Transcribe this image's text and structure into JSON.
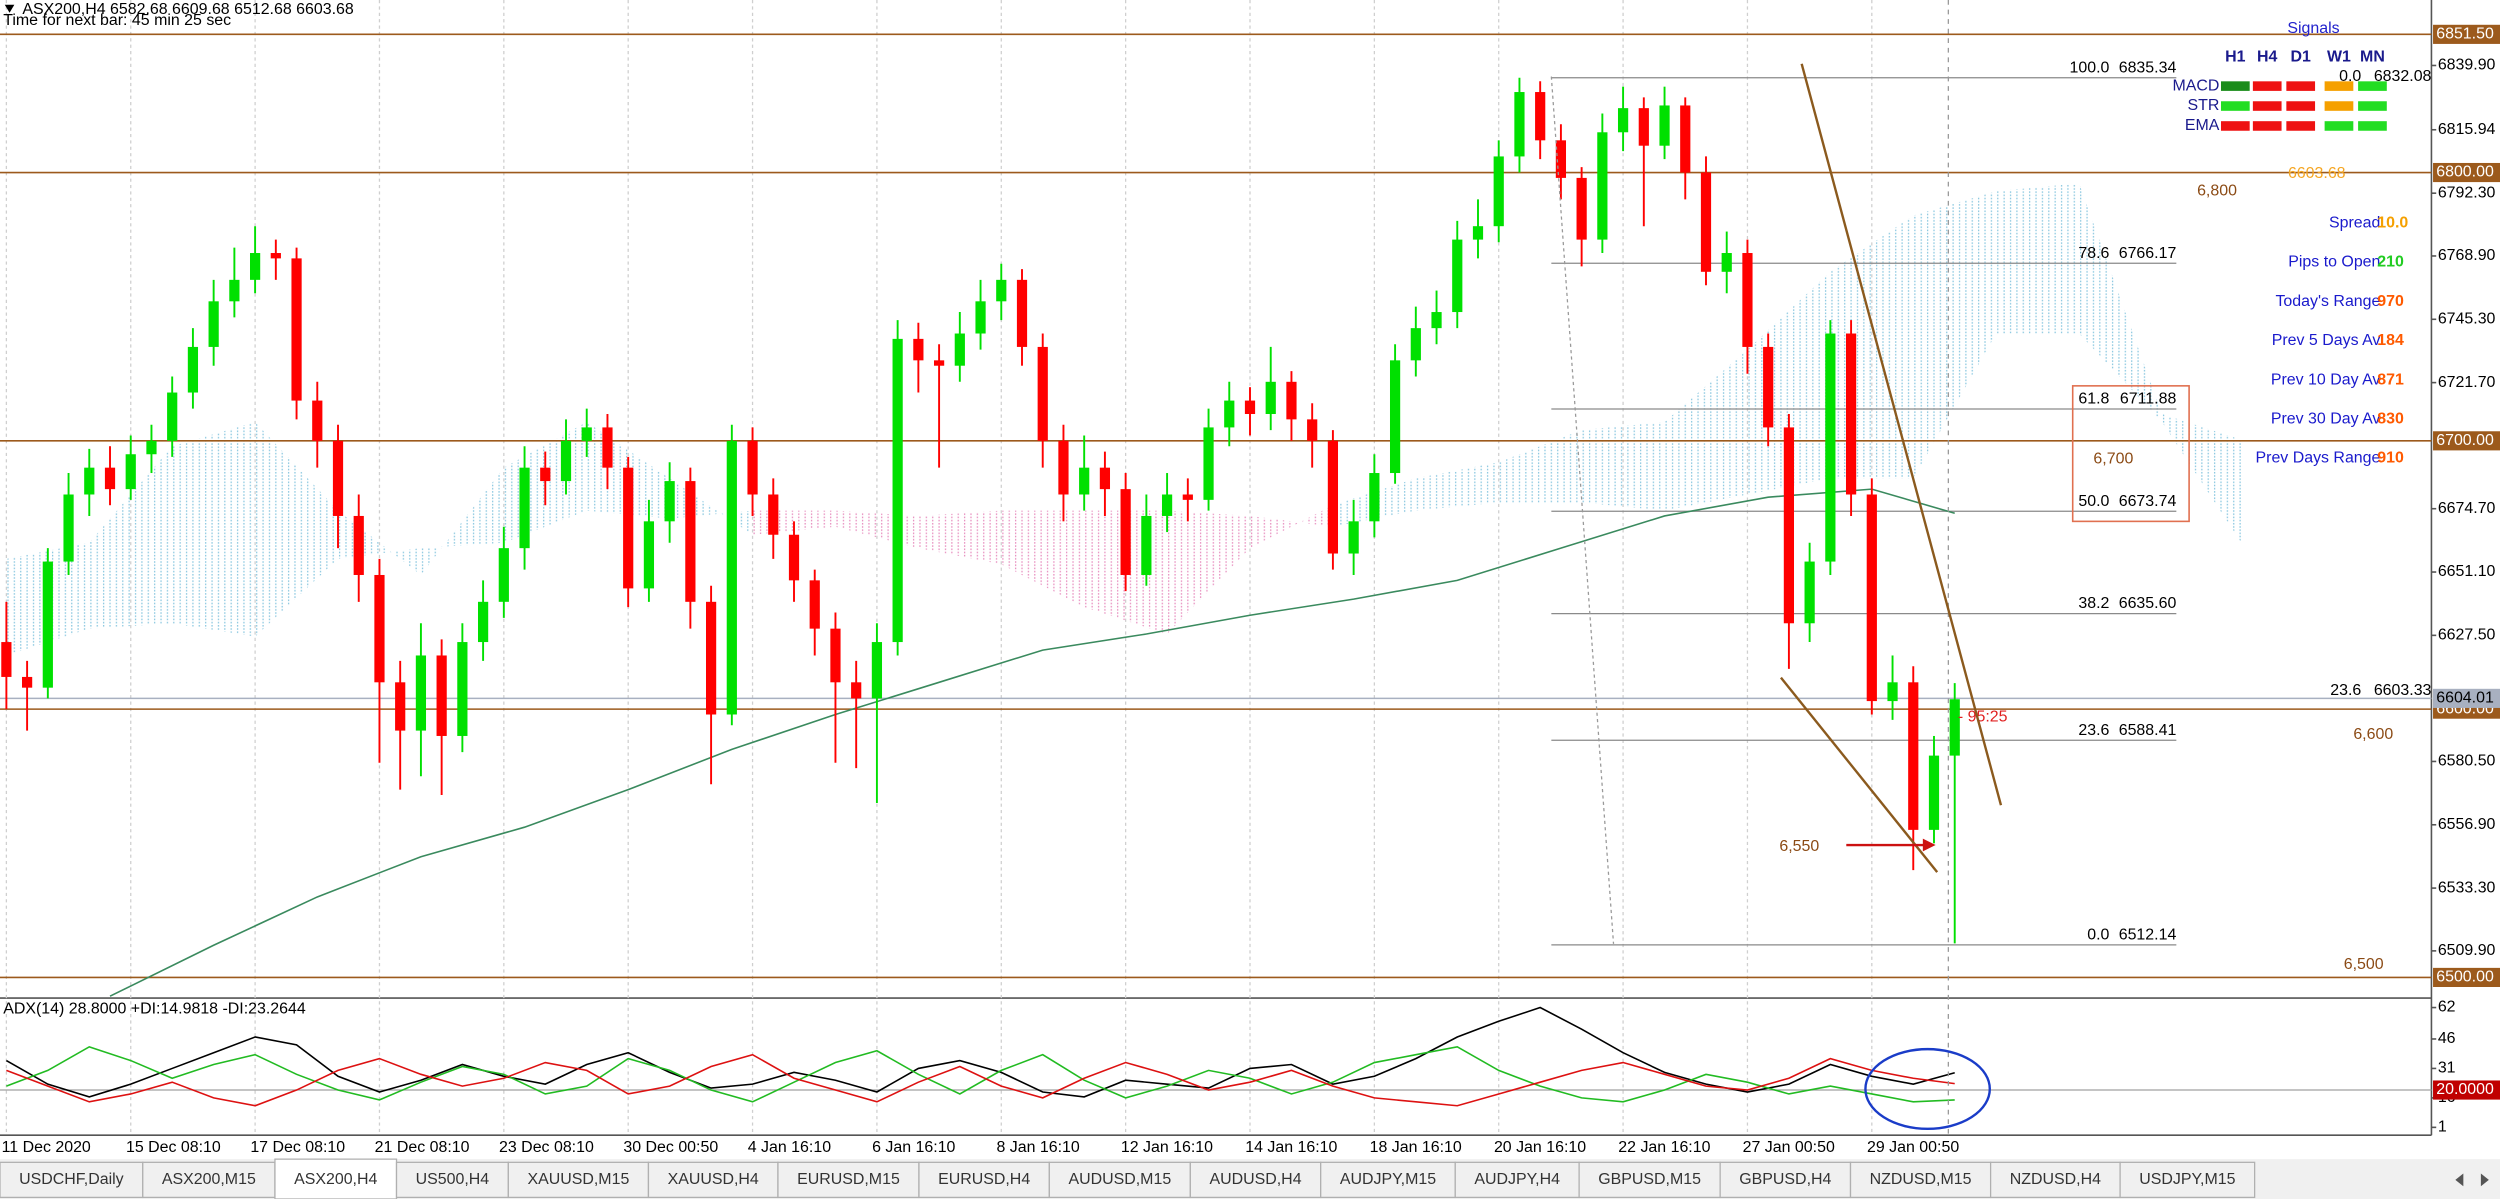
{
  "header": {
    "symbol_line": "ASX200,H4  6582.68 6609.68 6512.68 6603.68",
    "timer": "Time for next bar: 45 min 25 sec"
  },
  "chart_data": {
    "type": "candlestick",
    "categories": [
      "11 Dec 2020",
      null,
      null,
      null,
      null,
      null,
      "15 Dec 08:10",
      null,
      null,
      null,
      null,
      null,
      "17 Dec 08:10",
      null,
      null,
      null,
      null,
      null,
      "21 Dec 08:10",
      null,
      null,
      null,
      null,
      null,
      "23 Dec 08:10",
      null,
      null,
      null,
      null,
      null,
      "30 Dec 00:50",
      null,
      null,
      null,
      null,
      null,
      "4 Jan 16:10",
      null,
      null,
      null,
      null,
      null,
      "6 Jan 16:10",
      null,
      null,
      null,
      null,
      null,
      "8 Jan 16:10",
      null,
      null,
      null,
      null,
      null,
      "12 Jan 16:10",
      null,
      null,
      null,
      null,
      null,
      "14 Jan 16:10",
      null,
      null,
      null,
      null,
      null,
      "18 Jan 16:10",
      null,
      null,
      null,
      null,
      null,
      "20 Jan 16:10",
      null,
      null,
      null,
      null,
      null,
      "22 Jan 16:10",
      null,
      null,
      null,
      null,
      null,
      "27 Jan 00:50",
      null,
      null,
      null,
      null,
      null,
      "29 Jan 00:50",
      null,
      null,
      null,
      null
    ],
    "open": [
      6625,
      6612,
      6608,
      6655,
      6680,
      6690,
      6682,
      6695,
      6700,
      6718,
      6735,
      6752,
      6760,
      6770,
      6768,
      6715,
      6700,
      6672,
      6650,
      6610,
      6592,
      6620,
      6590,
      6625,
      6640,
      6660,
      6690,
      6685,
      6700,
      6705,
      6690,
      6645,
      6670,
      6685,
      6640,
      6598,
      6700,
      6680,
      6665,
      6648,
      6630,
      6610,
      6604,
      6625,
      6738,
      6730,
      6728,
      6740,
      6752,
      6760,
      6735,
      6700,
      6680,
      6690,
      6682,
      6650,
      6672,
      6680,
      6678,
      6705,
      6715,
      6710,
      6722,
      6708,
      6700,
      6658,
      6670,
      6688,
      6730,
      6742,
      6748,
      6775,
      6780,
      6806,
      6830,
      6812,
      6798,
      6775,
      6815,
      6824,
      6810,
      6825,
      6800,
      6763,
      6770,
      6735,
      6705,
      6632,
      6655,
      6740,
      6680,
      6603,
      6610,
      6555,
      6582.68
    ],
    "high": [
      6640,
      6618,
      6660,
      6688,
      6697,
      6698,
      6702,
      6706,
      6724,
      6742,
      6760,
      6772,
      6780,
      6775,
      6772,
      6722,
      6706,
      6680,
      6656,
      6618,
      6632,
      6626,
      6632,
      6648,
      6668,
      6698,
      6696,
      6708,
      6712,
      6710,
      6694,
      6678,
      6692,
      6690,
      6646,
      6706,
      6705,
      6686,
      6670,
      6652,
      6636,
      6618,
      6632,
      6745,
      6744,
      6736,
      6748,
      6760,
      6766,
      6764,
      6740,
      6706,
      6702,
      6696,
      6688,
      6680,
      6688,
      6686,
      6712,
      6722,
      6720,
      6735,
      6726,
      6714,
      6704,
      6678,
      6695,
      6736,
      6750,
      6756,
      6782,
      6790,
      6812,
      6835.34,
      6834,
      6818,
      6802,
      6822,
      6832,
      6828,
      6832,
      6828,
      6806,
      6778,
      6775,
      6740,
      6710,
      6662,
      6745,
      6745,
      6686,
      6620,
      6616,
      6590,
      6609.68
    ],
    "low": [
      6600,
      6592,
      6604,
      6650,
      6672,
      6676,
      6678,
      6688,
      6694,
      6712,
      6728,
      6746,
      6755,
      6760,
      6708,
      6690,
      6660,
      6640,
      6580,
      6570,
      6575,
      6568,
      6584,
      6618,
      6634,
      6652,
      6676,
      6680,
      6694,
      6682,
      6638,
      6640,
      6662,
      6630,
      6572,
      6594,
      6672,
      6656,
      6640,
      6620,
      6580,
      6578,
      6565,
      6620,
      6718,
      6690,
      6722,
      6734,
      6745,
      6728,
      6690,
      6670,
      6674,
      6672,
      6644,
      6646,
      6666,
      6670,
      6674,
      6698,
      6702,
      6704,
      6700,
      6690,
      6652,
      6650,
      6664,
      6684,
      6724,
      6736,
      6742,
      6768,
      6774,
      6800,
      6805,
      6790,
      6765,
      6770,
      6808,
      6780,
      6805,
      6790,
      6758,
      6755,
      6725,
      6698,
      6615,
      6625,
      6650,
      6672,
      6598,
      6596,
      6540,
      6550,
      6512.68
    ],
    "close": [
      6612,
      6608,
      6655,
      6680,
      6690,
      6682,
      6695,
      6700,
      6718,
      6735,
      6752,
      6760,
      6770,
      6768,
      6715,
      6700,
      6672,
      6650,
      6610,
      6592,
      6620,
      6590,
      6625,
      6640,
      6660,
      6690,
      6685,
      6700,
      6705,
      6690,
      6645,
      6670,
      6685,
      6640,
      6598,
      6700,
      6680,
      6665,
      6648,
      6630,
      6610,
      6604,
      6625,
      6738,
      6730,
      6728,
      6740,
      6752,
      6760,
      6735,
      6700,
      6680,
      6690,
      6682,
      6650,
      6672,
      6680,
      6678,
      6705,
      6715,
      6710,
      6722,
      6708,
      6700,
      6658,
      6670,
      6688,
      6730,
      6742,
      6748,
      6775,
      6780,
      6806,
      6830,
      6812,
      6798,
      6775,
      6815,
      6824,
      6810,
      6825,
      6800,
      6763,
      6770,
      6735,
      6705,
      6632,
      6655,
      6740,
      6680,
      6603,
      6610,
      6555,
      6582.68,
      6603.68
    ],
    "up_color": "#00e000",
    "down_color": "#ff0000",
    "ylim": [
      6492.3,
      6864.3
    ],
    "yticks": [
      {
        "value": 6839.9,
        "label": "6839.90"
      },
      6815.94,
      {
        "value": 6792.3,
        "label": "6792.30"
      },
      {
        "value": 6768.9,
        "label": "6768.90"
      },
      {
        "value": 6745.3,
        "label": "6745.30"
      },
      {
        "value": 6721.7,
        "label": "6721.70"
      },
      {
        "value": 6674.7,
        "label": "6674.70"
      },
      {
        "value": 6651.1,
        "label": "6651.10"
      },
      {
        "value": 6627.5,
        "label": "6627.50"
      },
      {
        "value": 6580.5,
        "label": "6580.50"
      },
      {
        "value": 6556.9,
        "label": "6556.90"
      },
      {
        "value": 6533.3,
        "label": "6533.30"
      },
      {
        "value": 6509.9,
        "label": "6509.90"
      }
    ],
    "levels": [
      {
        "value": 6851.5,
        "label": "6851.50"
      },
      {
        "value": 6800,
        "label": "6800.00"
      },
      {
        "value": 6700,
        "label": "6700.00"
      },
      {
        "value": 6600,
        "label": "6600.00"
      },
      {
        "value": 6500,
        "label": "6500.00"
      }
    ],
    "level_color": "#9c5a1c",
    "bid": {
      "value": 6604.01,
      "label": "6604.01"
    },
    "bid_color": "#a8b0c0",
    "fib": [
      {
        "level": "100.0",
        "price": 6835.34
      },
      {
        "level": "78.6",
        "price": 6766.17
      },
      {
        "level": "61.8",
        "price": 6711.88
      },
      {
        "level": "50.0",
        "price": 6673.74
      },
      {
        "level": "38.2",
        "price": 6635.6
      },
      {
        "level": "23.6",
        "price": 6588.41
      },
      {
        "level": "0.0",
        "price": 6512.14
      }
    ],
    "fib_price_labels": [
      "6835.34",
      "6766.17",
      "6711.88",
      "6673.74",
      "6635.60",
      "6588.41",
      "6512.14"
    ],
    "fib2": [
      {
        "level": "0.0",
        "price": 6832.08
      },
      {
        "level": "23.6",
        "price": 6603.33
      }
    ],
    "ma": {
      "x": [
        5,
        10,
        15,
        20,
        25,
        30,
        35,
        40,
        45,
        50,
        55,
        60,
        65,
        70,
        75,
        80,
        85,
        90,
        94
      ],
      "values": [
        6493,
        6512,
        6530,
        6545,
        6556,
        6570,
        6585,
        6598,
        6610,
        6622,
        6628,
        6635,
        6641,
        6648,
        6660,
        6672,
        6679,
        6682,
        6673
      ],
      "color": "#3a8a5e"
    },
    "cloud": {
      "x": [
        0,
        4,
        8,
        12,
        16,
        20,
        24,
        28,
        32,
        36,
        40,
        44,
        48,
        52,
        56,
        60,
        64,
        68,
        72,
        76,
        80,
        84,
        88,
        92,
        96,
        100,
        104,
        108
      ],
      "span_a": [
        6656,
        6662,
        6698,
        6707,
        6674,
        6650,
        6690,
        6707,
        6686,
        6665,
        6668,
        6660,
        6654,
        6638,
        6628,
        6660,
        6676,
        6686,
        6692,
        6704,
        6707,
        6734,
        6763,
        6784,
        6793,
        6796,
        6710,
        6700
      ],
      "span_b": [
        6620,
        6630,
        6632,
        6627,
        6656,
        6660,
        6662,
        6674,
        6671,
        6674,
        6674,
        6672,
        6674,
        6674,
        6674,
        6672,
        6668,
        6674,
        6677,
        6677,
        6674,
        6680,
        6686,
        6686,
        6740,
        6740,
        6707,
        6660
      ]
    },
    "annotations": [
      {
        "text": "6,800",
        "color": "#8b4a14"
      },
      {
        "text": "6,700",
        "color": "#8b4a14"
      },
      {
        "text": "6,600",
        "color": "#8b4a14"
      },
      {
        "text": "6,550",
        "color": "#8b4a14"
      },
      {
        "text": "6,500",
        "color": "#8b4a14"
      },
      {
        "text": "6603.68",
        "color": "#f5a623"
      },
      {
        "text": "- 95:25",
        "color": "#e02020"
      }
    ],
    "indicator": {
      "title": "ADX(14) 28.8000 +DI:14.9818 -DI:23.2644",
      "ylim": [
        -3,
        66
      ],
      "yticks": [
        62,
        46,
        31,
        16,
        1
      ],
      "level": {
        "value": 20,
        "label": "20.0000"
      },
      "x": [
        0,
        2,
        4,
        6,
        8,
        10,
        12,
        14,
        16,
        18,
        20,
        22,
        24,
        26,
        28,
        30,
        32,
        34,
        36,
        38,
        40,
        42,
        44,
        46,
        48,
        50,
        52,
        54,
        56,
        58,
        60,
        62,
        64,
        66,
        68,
        70,
        72,
        74,
        76,
        78,
        80,
        82,
        84,
        86,
        88,
        90,
        92,
        94
      ],
      "series": [
        {
          "color": "#000000",
          "values": [
            35,
            23,
            16.5,
            23,
            31,
            39,
            47,
            43,
            27,
            19,
            25,
            33,
            27,
            23,
            33,
            39,
            29,
            21,
            23,
            29,
            25,
            19,
            31,
            35,
            29,
            19,
            16.5,
            25,
            23,
            21,
            31,
            33,
            23,
            27,
            36,
            47,
            55,
            62,
            51,
            39,
            29,
            23,
            19,
            23,
            33,
            27,
            23,
            28.8
          ]
        },
        {
          "color": "#22bb22",
          "values": [
            22,
            30,
            42,
            35,
            26,
            33,
            38,
            28,
            20,
            15,
            24,
            32,
            28,
            18,
            22,
            36,
            30,
            20,
            14,
            24,
            34,
            40,
            28,
            18,
            30,
            38,
            25,
            16,
            22,
            30,
            26,
            18,
            24,
            34,
            38,
            42,
            30,
            22,
            16,
            14,
            20,
            28,
            24,
            18,
            22,
            18,
            14,
            14.98
          ]
        },
        {
          "color": "#dd1111",
          "values": [
            30,
            22,
            14,
            18,
            24,
            16,
            12,
            20,
            30,
            36,
            28,
            22,
            26,
            34,
            30,
            18,
            22,
            32,
            38,
            26,
            20,
            14,
            24,
            32,
            22,
            16,
            26,
            34,
            28,
            20,
            24,
            30,
            22,
            16,
            14,
            12,
            18,
            24,
            30,
            34,
            28,
            22,
            20,
            26,
            36,
            30,
            26,
            23.26
          ]
        }
      ]
    }
  },
  "signals": {
    "title": "Signals",
    "columns": [
      "H1",
      "H4",
      "D1",
      "W1",
      "MN"
    ],
    "rows": [
      {
        "name": "MACD",
        "colors": [
          "#1a8c1a",
          "#ee1111",
          "#ee1111",
          "#f5a000",
          "#22dd22"
        ]
      },
      {
        "name": "STR",
        "colors": [
          "#22dd22",
          "#ee1111",
          "#ee1111",
          "#f5a000",
          "#22dd22"
        ]
      },
      {
        "name": "EMA",
        "colors": [
          "#ee1111",
          "#ee1111",
          "#ee1111",
          "#22dd22",
          "#22dd22"
        ]
      }
    ]
  },
  "info": [
    {
      "label": "Spread",
      "value": "10.0",
      "color": "#f5a000"
    },
    {
      "label": "Pips to Open",
      "value": 210,
      "color": "#22cc22"
    },
    {
      "label": "Today's Range",
      "value": 970,
      "color": "#ff5a00"
    },
    {
      "label": "Prev 5 Days Av",
      "value": 184,
      "color": "#ff5a00"
    },
    {
      "label": "Prev 10 Day Av",
      "value": 871,
      "color": "#ff5a00"
    },
    {
      "label": "Prev 30 Day Av",
      "value": 830,
      "color": "#ff5a00"
    },
    {
      "label": "Prev Days Range",
      "value": 910,
      "color": "#ff5a00"
    }
  ],
  "tabs": [
    {
      "label": "USDCHF,Daily"
    },
    {
      "label": "ASX200,M15"
    },
    {
      "label": "ASX200,H4",
      "active": true
    },
    {
      "label": "US500,H4"
    },
    {
      "label": "XAUUSD,M15"
    },
    {
      "label": "XAUUSD,H4"
    },
    {
      "label": "EURUSD,M15"
    },
    {
      "label": "EURUSD,H4"
    },
    {
      "label": "AUDUSD,M15"
    },
    {
      "label": "AUDUSD,H4"
    },
    {
      "label": "AUDJPY,M15"
    },
    {
      "label": "AUDJPY,H4"
    },
    {
      "label": "GBPUSD,M15"
    },
    {
      "label": "GBPUSD,H4"
    },
    {
      "label": "NZDUSD,M15"
    },
    {
      "label": "NZDUSD,H4"
    },
    {
      "label": "USDJPY,M15"
    }
  ]
}
